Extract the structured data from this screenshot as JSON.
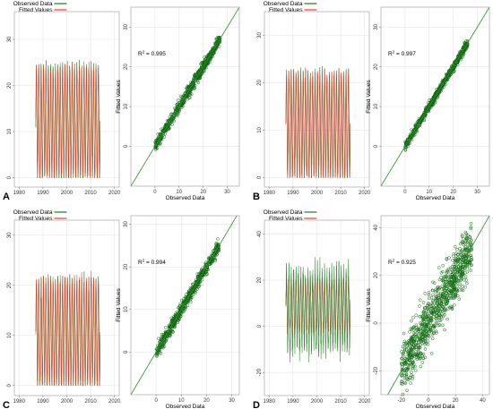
{
  "colors": {
    "observed": "#1e7a1e",
    "fitted": "#e8402c",
    "scatter": "#0f6a0f",
    "fit_line": "#2f8f2f",
    "grid": "#e6e6e6",
    "frame": "#9a9a9a"
  },
  "legend": {
    "observed": "Observed Data",
    "fitted": "Fitted Values"
  },
  "axis_labels": {
    "x": "Observed Data",
    "y": "Fitted Values"
  },
  "chart_data": [
    {
      "panel": "A",
      "type": "line",
      "grid": true,
      "legend_position": "top-center",
      "x_ticks": [
        "1980",
        "1990",
        "2000",
        "2010",
        "2020"
      ],
      "xlim": [
        1978,
        2022
      ],
      "y_ticks": [
        "0",
        "10",
        "20",
        "30"
      ],
      "ylim": [
        -2,
        36
      ],
      "time_range": [
        1987,
        2014
      ],
      "series": [
        {
          "name": "Observed Data",
          "seasonal_min": 0,
          "seasonal_max": 24,
          "overall_max": 28
        },
        {
          "name": "Fitted Values",
          "seasonal_min": 0,
          "seasonal_max": 24,
          "overall_max": 28
        }
      ]
    },
    {
      "panel": "A",
      "type": "scatter",
      "grid": true,
      "xlabel": "Observed Data",
      "ylabel": "Fitted Values",
      "x_ticks": [
        "0",
        "10",
        "20",
        "30"
      ],
      "xlim": [
        -10,
        35
      ],
      "y_ticks": [
        "0",
        "10",
        "20",
        "30"
      ],
      "ylim": [
        -10,
        35
      ],
      "r2_prefix": "R",
      "r2_value": "= 0.995",
      "points_range": [
        0,
        27
      ],
      "r2": 0.995
    },
    {
      "panel": "B",
      "type": "line",
      "grid": true,
      "legend_position": "top-center",
      "x_ticks": [
        "1980",
        "1990",
        "2000",
        "2010",
        "2020"
      ],
      "xlim": [
        1978,
        2022
      ],
      "y_ticks": [
        "0",
        "10",
        "20",
        "30"
      ],
      "ylim": [
        -2,
        35
      ],
      "time_range": [
        1987,
        2014
      ],
      "series": [
        {
          "name": "Observed Data",
          "seasonal_min": 0,
          "seasonal_max": 22,
          "overall_max": 26
        },
        {
          "name": "Fitted Values",
          "seasonal_min": 0,
          "seasonal_max": 22,
          "overall_max": 26
        }
      ]
    },
    {
      "panel": "B",
      "type": "scatter",
      "grid": true,
      "xlabel": "Observed Data",
      "ylabel": "Fitted Values",
      "x_ticks": [
        "0",
        "10",
        "20",
        "30"
      ],
      "xlim": [
        -10,
        35
      ],
      "y_ticks": [
        "0",
        "10",
        "20",
        "30"
      ],
      "ylim": [
        -10,
        35
      ],
      "r2_prefix": "R",
      "r2_value": "= 0.997",
      "points_range": [
        0,
        26
      ],
      "r2": 0.997
    },
    {
      "panel": "C",
      "type": "line",
      "grid": true,
      "legend_position": "top-center",
      "x_ticks": [
        "1980",
        "1990",
        "2000",
        "2010",
        "2020"
      ],
      "xlim": [
        1978,
        2022
      ],
      "y_ticks": [
        "0",
        "10",
        "20",
        "30"
      ],
      "ylim": [
        -2,
        33
      ],
      "time_range": [
        1987,
        2014
      ],
      "series": [
        {
          "name": "Observed Data",
          "seasonal_min": 0,
          "seasonal_max": 21,
          "overall_max": 25
        },
        {
          "name": "Fitted Values",
          "seasonal_min": 0,
          "seasonal_max": 21,
          "overall_max": 25
        }
      ]
    },
    {
      "panel": "C",
      "type": "scatter",
      "grid": true,
      "xlabel": "Observed Data",
      "ylabel": "Fitted Values",
      "x_ticks": [
        "0",
        "10",
        "20",
        "30"
      ],
      "xlim": [
        -10,
        33
      ],
      "y_ticks": [
        "0",
        "10",
        "20",
        "30"
      ],
      "ylim": [
        -10,
        32
      ],
      "r2_prefix": "R",
      "r2_value": "= 0.994",
      "points_range": [
        0,
        25
      ],
      "r2": 0.994
    },
    {
      "panel": "D",
      "type": "line",
      "grid": true,
      "legend_position": "top-center",
      "x_ticks": [
        "1980",
        "1990",
        "2000",
        "2010",
        "2020"
      ],
      "xlim": [
        1978,
        2022
      ],
      "y_ticks": [
        "-20",
        "0",
        "20",
        "40"
      ],
      "ylim": [
        -30,
        46
      ],
      "time_range": [
        1987,
        2014
      ],
      "series": [
        {
          "name": "Observed Data",
          "seasonal_min": -10,
          "seasonal_max": 24,
          "overall_min": -24,
          "overall_max": 30
        },
        {
          "name": "Fitted Values",
          "seasonal_min": -2,
          "seasonal_max": 20,
          "overall_min": -12,
          "overall_max": 24
        }
      ]
    },
    {
      "panel": "D",
      "type": "scatter",
      "grid": true,
      "xlabel": "Observed Data",
      "ylabel": "Fitted Values",
      "x_ticks": [
        "-20",
        "0",
        "20",
        "40"
      ],
      "xlim": [
        -35,
        45
      ],
      "y_ticks": [
        "-20",
        "0",
        "20",
        "40"
      ],
      "ylim": [
        -30,
        45
      ],
      "r2_prefix": "R",
      "r2_value": "= 0.925",
      "points_range": [
        -20,
        32
      ],
      "r2": 0.925
    }
  ]
}
